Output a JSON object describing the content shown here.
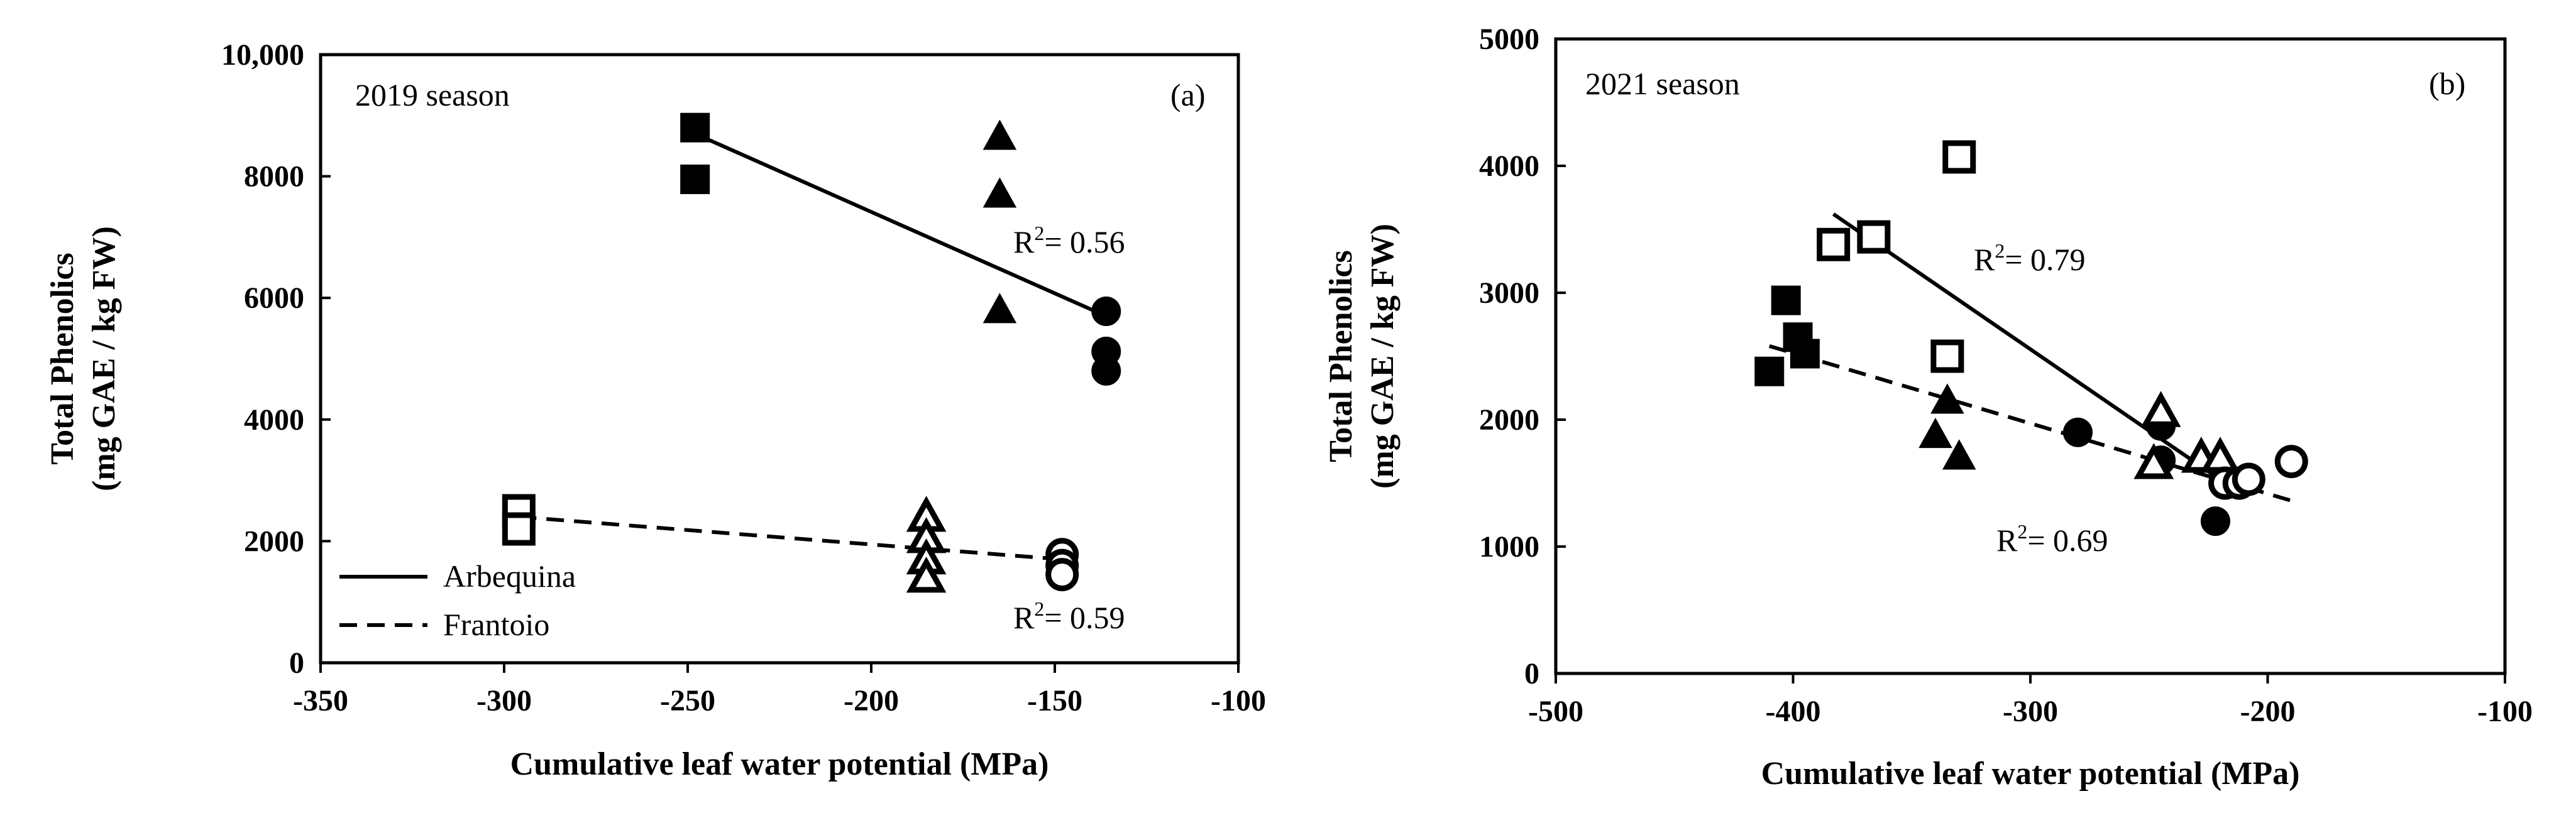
{
  "chart_data": [
    {
      "id": "a",
      "type": "scatter",
      "panel_label": "(a)",
      "season_label": "2019 season",
      "xlabel": "Cumulative leaf water potential (MPa)",
      "ylabel_line1": "Total Phenolics",
      "ylabel_line2": "(mg GAE / kg FW)",
      "xlim": [
        -350,
        -100
      ],
      "ylim": [
        0,
        10000
      ],
      "xticks": [
        -350,
        -300,
        -250,
        -200,
        -150,
        -100
      ],
      "xtick_labels": [
        "-350",
        "-300",
        "-250",
        "-200",
        "-150",
        "-100"
      ],
      "yticks": [
        0,
        2000,
        4000,
        6000,
        8000,
        10000
      ],
      "ytick_labels": [
        "0",
        "2000",
        "4000",
        "6000",
        "8000",
        "10,000"
      ],
      "legend": [
        {
          "label": "Arbequina",
          "style": "solid"
        },
        {
          "label": "Frantoio",
          "style": "dashed"
        }
      ],
      "series": [
        {
          "name": "Arbequina",
          "marker": "square",
          "filled": true,
          "points": [
            [
              -248,
              8800
            ],
            [
              -248,
              7950
            ]
          ]
        },
        {
          "name": "Arbequina",
          "marker": "triangle",
          "filled": true,
          "points": [
            [
              -165,
              8650
            ],
            [
              -165,
              7700
            ],
            [
              -165,
              5800
            ]
          ]
        },
        {
          "name": "Arbequina",
          "marker": "circle",
          "filled": true,
          "points": [
            [
              -136,
              5780
            ],
            [
              -136,
              5120
            ],
            [
              -136,
              4800
            ]
          ]
        },
        {
          "name": "Frantoio",
          "marker": "square",
          "filled": false,
          "points": [
            [
              -296,
              2500
            ],
            [
              -296,
              2200
            ]
          ]
        },
        {
          "name": "Frantoio",
          "marker": "triangle",
          "filled": false,
          "points": [
            [
              -185,
              2400
            ],
            [
              -185,
              2050
            ],
            [
              -185,
              1700
            ],
            [
              -185,
              1400
            ]
          ]
        },
        {
          "name": "Frantoio",
          "marker": "circle",
          "filled": false,
          "points": [
            [
              -148,
              1780
            ],
            [
              -148,
              1600
            ],
            [
              -148,
              1450
            ]
          ]
        }
      ],
      "fits": [
        {
          "name": "Arbequina",
          "style": "solid",
          "x": [
            -248,
            -136
          ],
          "y": [
            8700,
            5700
          ],
          "r2_text": "R",
          "r2_sup": "2",
          "r2_value": "= 0.56"
        },
        {
          "name": "Frantoio",
          "style": "dashed",
          "x": [
            -296,
            -148
          ],
          "y": [
            2400,
            1700
          ],
          "r2_text": "R",
          "r2_sup": "2",
          "r2_value": "= 0.59"
        }
      ]
    },
    {
      "id": "b",
      "type": "scatter",
      "panel_label": "(b)",
      "season_label": "2021 season",
      "xlabel": "Cumulative leaf water potential (MPa)",
      "ylabel_line1": "Total Phenolics",
      "ylabel_line2": "(mg GAE / kg FW)",
      "xlim": [
        -500,
        -100
      ],
      "ylim": [
        0,
        5000
      ],
      "xticks": [
        -500,
        -400,
        -300,
        -200,
        -100
      ],
      "xtick_labels": [
        "-500",
        "-400",
        "-300",
        "-200",
        "-100"
      ],
      "yticks": [
        0,
        1000,
        2000,
        3000,
        4000,
        5000
      ],
      "ytick_labels": [
        "0",
        "1000",
        "2000",
        "3000",
        "4000",
        "5000"
      ],
      "series": [
        {
          "name": "Arbequina",
          "marker": "square",
          "filled": true,
          "points": [
            [
              -410,
              2380
            ],
            [
              -403,
              2940
            ],
            [
              -398,
              2650
            ],
            [
              -395,
              2520
            ]
          ]
        },
        {
          "name": "Arbequina",
          "marker": "triangle",
          "filled": true,
          "points": [
            [
              -335,
              2150
            ],
            [
              -340,
              1880
            ],
            [
              -330,
              1710
            ]
          ]
        },
        {
          "name": "Arbequina",
          "marker": "circle",
          "filled": true,
          "points": [
            [
              -280,
              1900
            ],
            [
              -245,
              1950
            ],
            [
              -245,
              1680
            ],
            [
              -222,
              1200
            ]
          ]
        },
        {
          "name": "Frantoio",
          "marker": "square",
          "filled": false,
          "points": [
            [
              -383,
              3380
            ],
            [
              -366,
              3440
            ],
            [
              -330,
              4070
            ],
            [
              -335,
              2500
            ]
          ]
        },
        {
          "name": "Frantoio",
          "marker": "triangle",
          "filled": false,
          "points": [
            [
              -245,
              2060
            ],
            [
              -248,
              1650
            ],
            [
              -228,
              1700
            ],
            [
              -220,
              1700
            ]
          ]
        },
        {
          "name": "Frantoio",
          "marker": "circle",
          "filled": false,
          "points": [
            [
              -218,
              1500
            ],
            [
              -212,
              1500
            ],
            [
              -208,
              1530
            ],
            [
              -190,
              1670
            ]
          ]
        }
      ],
      "fits": [
        {
          "name": "Frantoio",
          "style": "solid",
          "x": [
            -383,
            -210
          ],
          "y": [
            3620,
            1400
          ],
          "r2_text": "R",
          "r2_sup": "2",
          "r2_value": "= 0.79"
        },
        {
          "name": "Arbequina",
          "style": "dashed",
          "x": [
            -410,
            -188
          ],
          "y": [
            2580,
            1350
          ],
          "r2_text": "R",
          "r2_sup": "2",
          "r2_value": "= 0.69"
        }
      ]
    }
  ]
}
